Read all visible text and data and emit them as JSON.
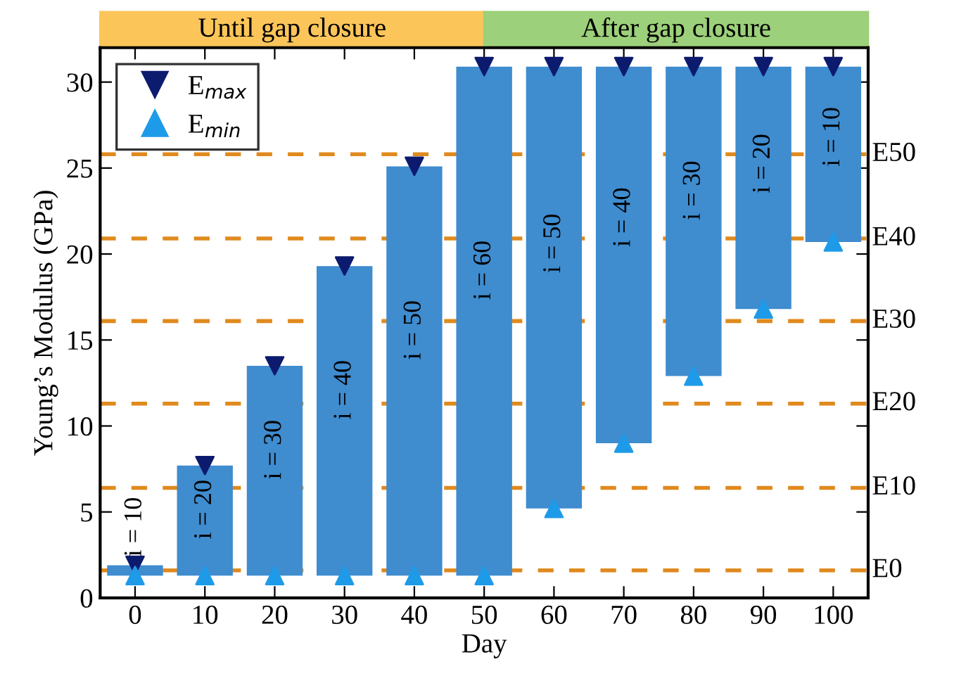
{
  "chart_data": {
    "type": "bar",
    "xlabel": "Day",
    "ylabel": "Young’s Modulus (GPa)",
    "x": [
      0,
      10,
      20,
      30,
      40,
      50,
      60,
      70,
      80,
      90,
      100
    ],
    "xlim": [
      -5,
      105
    ],
    "xticks": [
      0,
      10,
      20,
      30,
      40,
      50,
      60,
      70,
      80,
      90,
      100
    ],
    "ylim": [
      0,
      32
    ],
    "yticks": [
      0,
      5,
      10,
      15,
      20,
      25,
      30
    ],
    "series": [
      {
        "color": "#3f8ccf",
        "base": [
          1.3,
          1.3,
          1.3,
          1.3,
          1.3,
          1.3,
          5.2,
          9.0,
          12.9,
          16.8,
          20.7
        ],
        "values": [
          0.6,
          6.4,
          12.2,
          18.0,
          23.8,
          29.6,
          25.7,
          21.9,
          18.0,
          14.1,
          10.2
        ]
      },
      {
        "type": "scatter",
        "name": "E$_{max}$",
        "color": "#0d1b6e",
        "marker": "triangle_down",
        "values": [
          1.9,
          7.7,
          13.5,
          19.3,
          25.1,
          30.9,
          30.9,
          30.9,
          30.9,
          30.9,
          30.9
        ]
      },
      {
        "type": "scatter",
        "name": "E$_{min}$",
        "color": "#1e9be8",
        "marker": "triangle",
        "values": [
          1.3,
          1.3,
          1.3,
          1.3,
          1.3,
          1.3,
          5.2,
          9.0,
          12.9,
          16.8,
          20.7
        ]
      }
    ],
    "ref_lines": [
      {
        "axis": "y",
        "value": 1.6,
        "label": "E0",
        "color": "#e08a1e",
        "line_style": "dashed"
      },
      {
        "axis": "y",
        "value": 6.4,
        "label": "E10",
        "color": "#e08a1e",
        "line_style": "dashed"
      },
      {
        "axis": "y",
        "value": 11.3,
        "label": "E20",
        "color": "#e08a1e",
        "line_style": "dashed"
      },
      {
        "axis": "y",
        "value": 16.1,
        "label": "E30",
        "color": "#e08a1e",
        "line_style": "dashed"
      },
      {
        "axis": "y",
        "value": 20.9,
        "label": "E40",
        "color": "#e08a1e",
        "line_style": "dashed"
      },
      {
        "axis": "y",
        "value": 25.8,
        "label": "E50",
        "color": "#e08a1e",
        "line_style": "dashed"
      }
    ],
    "annotations": [
      "Until gap closure",
      "After gap closure",
      "i = 10",
      "i = 20",
      "i = 30",
      "i = 40",
      "i = 50",
      "i = 60",
      "i = 50",
      "i = 40",
      "i = 30",
      "i = 20",
      "i = 10"
    ],
    "legend": "top left",
    "grid": false
  }
}
